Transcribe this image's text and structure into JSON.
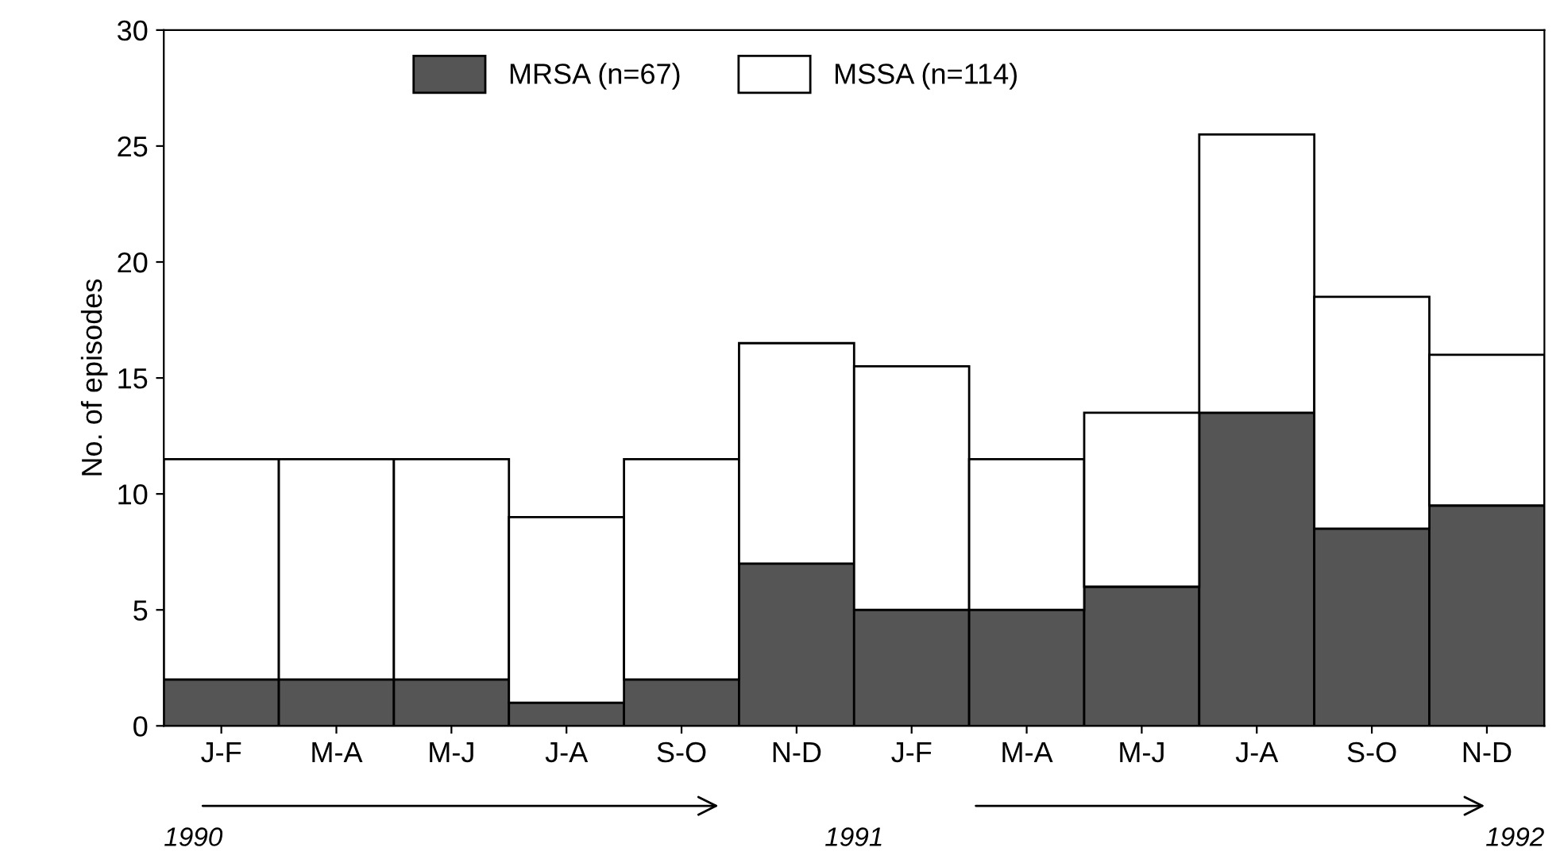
{
  "chart_data": {
    "type": "bar",
    "stacked": true,
    "ylabel": "No. of episodes",
    "categories": [
      "J-F",
      "M-A",
      "M-J",
      "J-A",
      "S-O",
      "N-D",
      "J-F",
      "M-A",
      "M-J",
      "J-A",
      "S-O",
      "N-D"
    ],
    "series": [
      {
        "name": "MRSA (n=67)",
        "color": "#555555",
        "values": [
          2,
          2,
          2,
          1,
          2,
          7,
          5,
          5,
          6,
          13.5,
          8.5,
          9.5
        ]
      },
      {
        "name": "MSSA (n=114)",
        "color": "#ffffff",
        "values": [
          9.5,
          9.5,
          9.5,
          8,
          9.5,
          9.5,
          10.5,
          6.5,
          7.5,
          12,
          10,
          6.5
        ]
      }
    ],
    "ylim": [
      0,
      30
    ],
    "yticks": [
      0,
      5,
      10,
      15,
      20,
      25,
      30
    ],
    "grid": false,
    "legend": "top",
    "annotations": [
      "1990",
      "1991",
      "1992"
    ]
  }
}
